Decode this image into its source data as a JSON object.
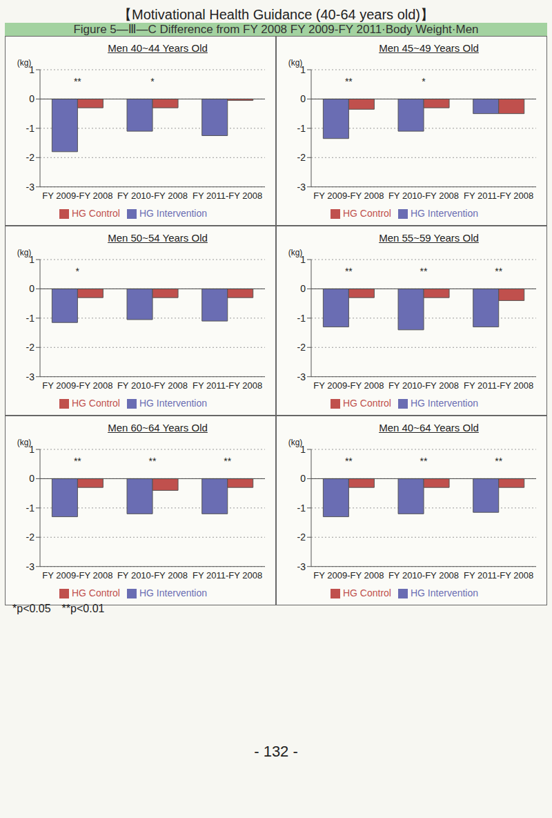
{
  "header": "【Motivational Health Guidance (40-64 years old)】",
  "figure_title": "Figure 5—Ⅲ—C Difference from FY 2008 FY 2009-FY 2011·Body Weight·Men",
  "footnote": "*p<0.05　**p<0.01",
  "page_number": "- 132 -",
  "chart_data": [
    {
      "type": "bar",
      "title": "Men 40~44 Years Old",
      "y_label": "(kg)",
      "categories": [
        "FY 2009-FY 2008",
        "FY 2010-FY 2008",
        "FY 2011-FY 2008"
      ],
      "series": [
        {
          "name": "HG Intervention",
          "color": "#6a6db3",
          "values": [
            -1.8,
            -1.1,
            -1.25
          ]
        },
        {
          "name": "HG Control",
          "color": "#c0504d",
          "values": [
            -0.3,
            -0.3,
            -0.05
          ]
        }
      ],
      "annotations": [
        {
          "category": "FY 2009-FY 2008",
          "text": "**"
        },
        {
          "category": "FY 2010-FY 2008",
          "text": "*"
        }
      ],
      "ylim": [
        -3,
        1
      ],
      "yticks": [
        -3,
        -2,
        -1,
        0,
        1
      ],
      "grid": true,
      "legend": "bottom"
    },
    {
      "type": "bar",
      "title": "Men 45~49 Years Old",
      "y_label": "(kg)",
      "categories": [
        "FY 2009-FY 2008",
        "FY 2010-FY 2008",
        "FY 2011-FY 2008"
      ],
      "series": [
        {
          "name": "HG Intervention",
          "color": "#6a6db3",
          "values": [
            -1.35,
            -1.1,
            -0.5
          ]
        },
        {
          "name": "HG Control",
          "color": "#c0504d",
          "values": [
            -0.35,
            -0.3,
            -0.5
          ]
        }
      ],
      "annotations": [
        {
          "category": "FY 2009-FY 2008",
          "text": "**"
        },
        {
          "category": "FY 2010-FY 2008",
          "text": "*"
        }
      ],
      "ylim": [
        -3,
        1
      ],
      "yticks": [
        -3,
        -2,
        -1,
        0,
        1
      ],
      "grid": true,
      "legend": "bottom"
    },
    {
      "type": "bar",
      "title": "Men 50~54 Years Old",
      "y_label": "(kg)",
      "categories": [
        "FY 2009-FY 2008",
        "FY 2010-FY 2008",
        "FY 2011-FY 2008"
      ],
      "series": [
        {
          "name": "HG Intervention",
          "color": "#6a6db3",
          "values": [
            -1.15,
            -1.05,
            -1.1
          ]
        },
        {
          "name": "HG Control",
          "color": "#c0504d",
          "values": [
            -0.3,
            -0.3,
            -0.3
          ]
        }
      ],
      "annotations": [
        {
          "category": "FY 2009-FY 2008",
          "text": "*"
        }
      ],
      "ylim": [
        -3,
        1
      ],
      "yticks": [
        -3,
        -2,
        -1,
        0,
        1
      ],
      "grid": true,
      "legend": "bottom"
    },
    {
      "type": "bar",
      "title": "Men 55~59 Years Old",
      "y_label": "(kg)",
      "categories": [
        "FY 2009-FY 2008",
        "FY 2010-FY 2008",
        "FY 2011-FY 2008"
      ],
      "series": [
        {
          "name": "HG Intervention",
          "color": "#6a6db3",
          "values": [
            -1.3,
            -1.4,
            -1.3
          ]
        },
        {
          "name": "HG Control",
          "color": "#c0504d",
          "values": [
            -0.3,
            -0.3,
            -0.4
          ]
        }
      ],
      "annotations": [
        {
          "category": "FY 2009-FY 2008",
          "text": "**"
        },
        {
          "category": "FY 2010-FY 2008",
          "text": "**"
        },
        {
          "category": "FY 2011-FY 2008",
          "text": "**"
        }
      ],
      "ylim": [
        -3,
        1
      ],
      "yticks": [
        -3,
        -2,
        -1,
        0,
        1
      ],
      "grid": true,
      "legend": "bottom"
    },
    {
      "type": "bar",
      "title": "Men 60~64 Years Old",
      "y_label": "(kg)",
      "categories": [
        "FY 2009-FY 2008",
        "FY 2010-FY 2008",
        "FY 2011-FY 2008"
      ],
      "series": [
        {
          "name": "HG Intervention",
          "color": "#6a6db3",
          "values": [
            -1.3,
            -1.2,
            -1.2
          ]
        },
        {
          "name": "HG Control",
          "color": "#c0504d",
          "values": [
            -0.3,
            -0.4,
            -0.3
          ]
        }
      ],
      "annotations": [
        {
          "category": "FY 2009-FY 2008",
          "text": "**"
        },
        {
          "category": "FY 2010-FY 2008",
          "text": "**"
        },
        {
          "category": "FY 2011-FY 2008",
          "text": "**"
        }
      ],
      "ylim": [
        -3,
        1
      ],
      "yticks": [
        -3,
        -2,
        -1,
        0,
        1
      ],
      "grid": true,
      "legend": "bottom"
    },
    {
      "type": "bar",
      "title": "Men 40~64 Years Old",
      "y_label": "(kg)",
      "categories": [
        "FY 2009-FY 2008",
        "FY 2010-FY 2008",
        "FY 2011-FY 2008"
      ],
      "series": [
        {
          "name": "HG Intervention",
          "color": "#6a6db3",
          "values": [
            -1.3,
            -1.2,
            -1.15
          ]
        },
        {
          "name": "HG Control",
          "color": "#c0504d",
          "values": [
            -0.3,
            -0.3,
            -0.3
          ]
        }
      ],
      "annotations": [
        {
          "category": "FY 2009-FY 2008",
          "text": "**"
        },
        {
          "category": "FY 2010-FY 2008",
          "text": "**"
        },
        {
          "category": "FY 2011-FY 2008",
          "text": "**"
        }
      ],
      "ylim": [
        -3,
        1
      ],
      "yticks": [
        -3,
        -2,
        -1,
        0,
        1
      ],
      "grid": true,
      "legend": "bottom"
    }
  ]
}
